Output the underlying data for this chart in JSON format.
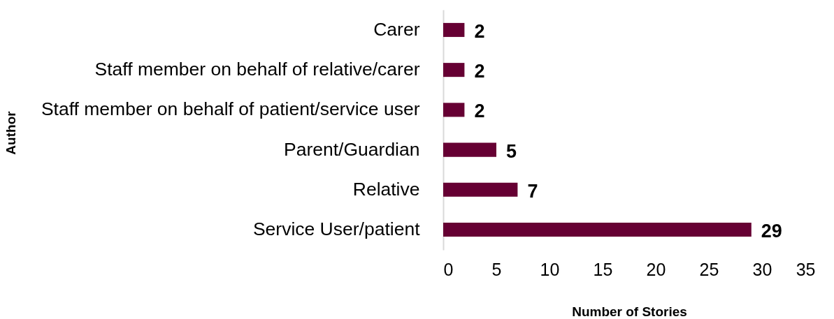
{
  "chart_data": {
    "type": "bar",
    "orientation": "horizontal",
    "xlabel": "Number of Stories",
    "ylabel": "Author",
    "categories": [
      "Carer",
      "Staff member on behalf of relative/carer",
      "Staff member on behalf of patient/service user",
      "Parent/Guardian",
      "Relative",
      "Service User/patient"
    ],
    "values": [
      2,
      2,
      2,
      5,
      7,
      29
    ],
    "color": "#660033",
    "xlim": [
      0,
      35
    ],
    "xticks": [
      0,
      5,
      10,
      15,
      20,
      25,
      30,
      35
    ],
    "grid": false,
    "data_labels": true
  }
}
